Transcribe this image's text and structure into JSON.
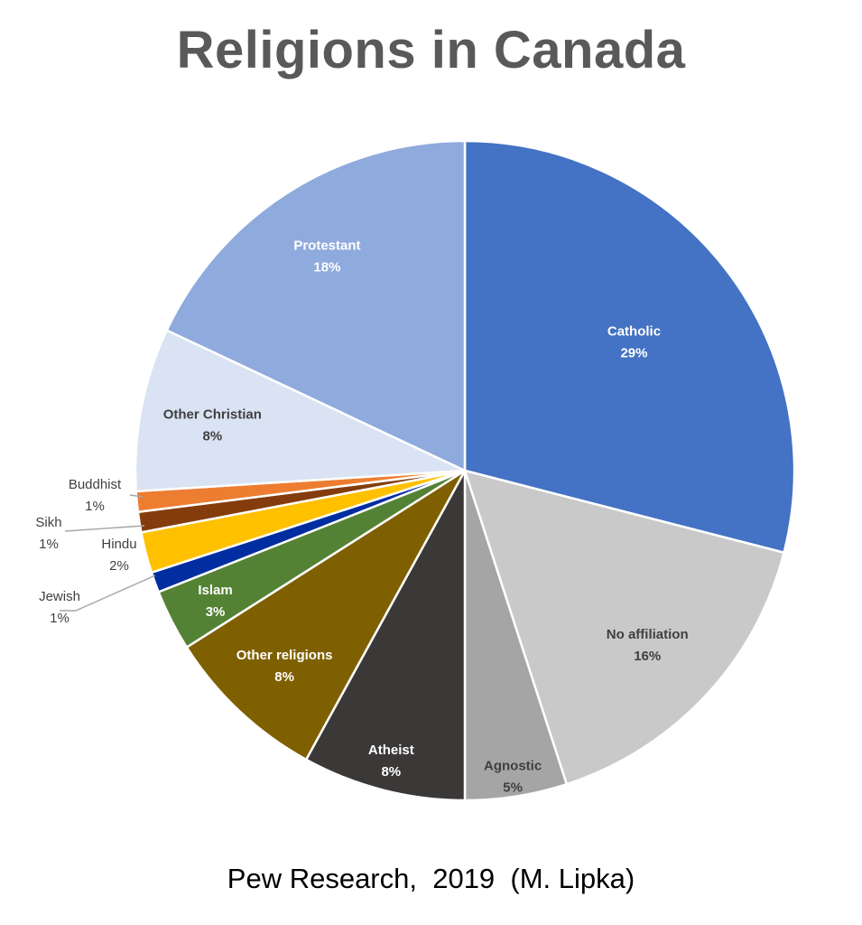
{
  "chart_data": {
    "type": "pie",
    "title": "Religions in Canada",
    "source": "Pew Research,  2019  (M. Lipka)",
    "slices": [
      {
        "name": "Catholic",
        "value": 29,
        "label": "29%",
        "color": "#4472C4",
        "label_style": "inside-light"
      },
      {
        "name": "No affiliation",
        "value": 16,
        "label": "16%",
        "color": "#C9C9C9",
        "label_style": "inside-dark"
      },
      {
        "name": "Agnostic",
        "value": 5,
        "label": "5%",
        "color": "#A5A5A5",
        "label_style": "inside-dark"
      },
      {
        "name": "Atheist",
        "value": 8,
        "label": "8%",
        "color": "#3B3838",
        "label_style": "inside-light"
      },
      {
        "name": "Other religions",
        "value": 8,
        "label": "8%",
        "color": "#7F6000",
        "label_style": "inside-light"
      },
      {
        "name": "Islam",
        "value": 3,
        "label": "3%",
        "color": "#548235",
        "label_style": "inside-light"
      },
      {
        "name": "Jewish",
        "value": 1,
        "label": "1%",
        "color": "#002DA0",
        "label_style": "outside"
      },
      {
        "name": "Hindu",
        "value": 2,
        "label": "2%",
        "color": "#FFC000",
        "label_style": "outside"
      },
      {
        "name": "Sikh",
        "value": 1,
        "label": "1%",
        "color": "#843C0C",
        "label_style": "outside"
      },
      {
        "name": "Buddhist",
        "value": 1,
        "label": "1%",
        "color": "#ED7D31",
        "label_style": "outside"
      },
      {
        "name": "Other Christian",
        "value": 8,
        "label": "8%",
        "color": "#DAE3F3",
        "label_style": "inside-dark"
      },
      {
        "name": "Protestant",
        "value": 18,
        "label": "18%",
        "color": "#8FAADC",
        "label_style": "inside-light"
      }
    ]
  }
}
